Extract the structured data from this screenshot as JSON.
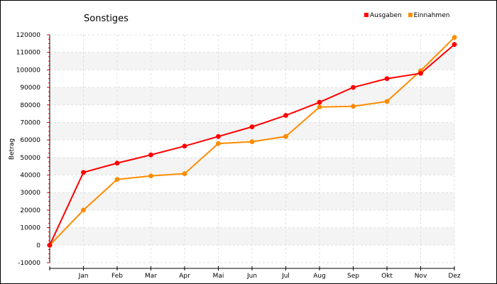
{
  "chart_data": {
    "type": "line",
    "title": "Sonstiges",
    "xlabel": "",
    "ylabel": "Betrag",
    "categories": [
      "",
      "Jan",
      "Feb",
      "Mar",
      "Apr",
      "Mai",
      "Jun",
      "Jul",
      "Aug",
      "Sep",
      "Okt",
      "Nov",
      "Dez"
    ],
    "ylim": [
      -10000,
      120000
    ],
    "yticks": [
      -10000,
      0,
      10000,
      20000,
      30000,
      40000,
      50000,
      60000,
      70000,
      80000,
      90000,
      100000,
      110000,
      120000
    ],
    "series": [
      {
        "name": "Ausgaben",
        "color": "#ff0000",
        "values": [
          0,
          41500,
          46800,
          51500,
          56500,
          62000,
          67500,
          74000,
          81500,
          90000,
          95000,
          98000,
          114500
        ]
      },
      {
        "name": "Einnahmen",
        "color": "#ff8c00",
        "values": [
          0,
          20000,
          37500,
          39500,
          40800,
          58000,
          59000,
          62000,
          78800,
          79200,
          82000,
          99500,
          118500
        ]
      }
    ],
    "legend_position": "top-right",
    "grid": true,
    "grid_band_color": "#f4f4f4"
  }
}
